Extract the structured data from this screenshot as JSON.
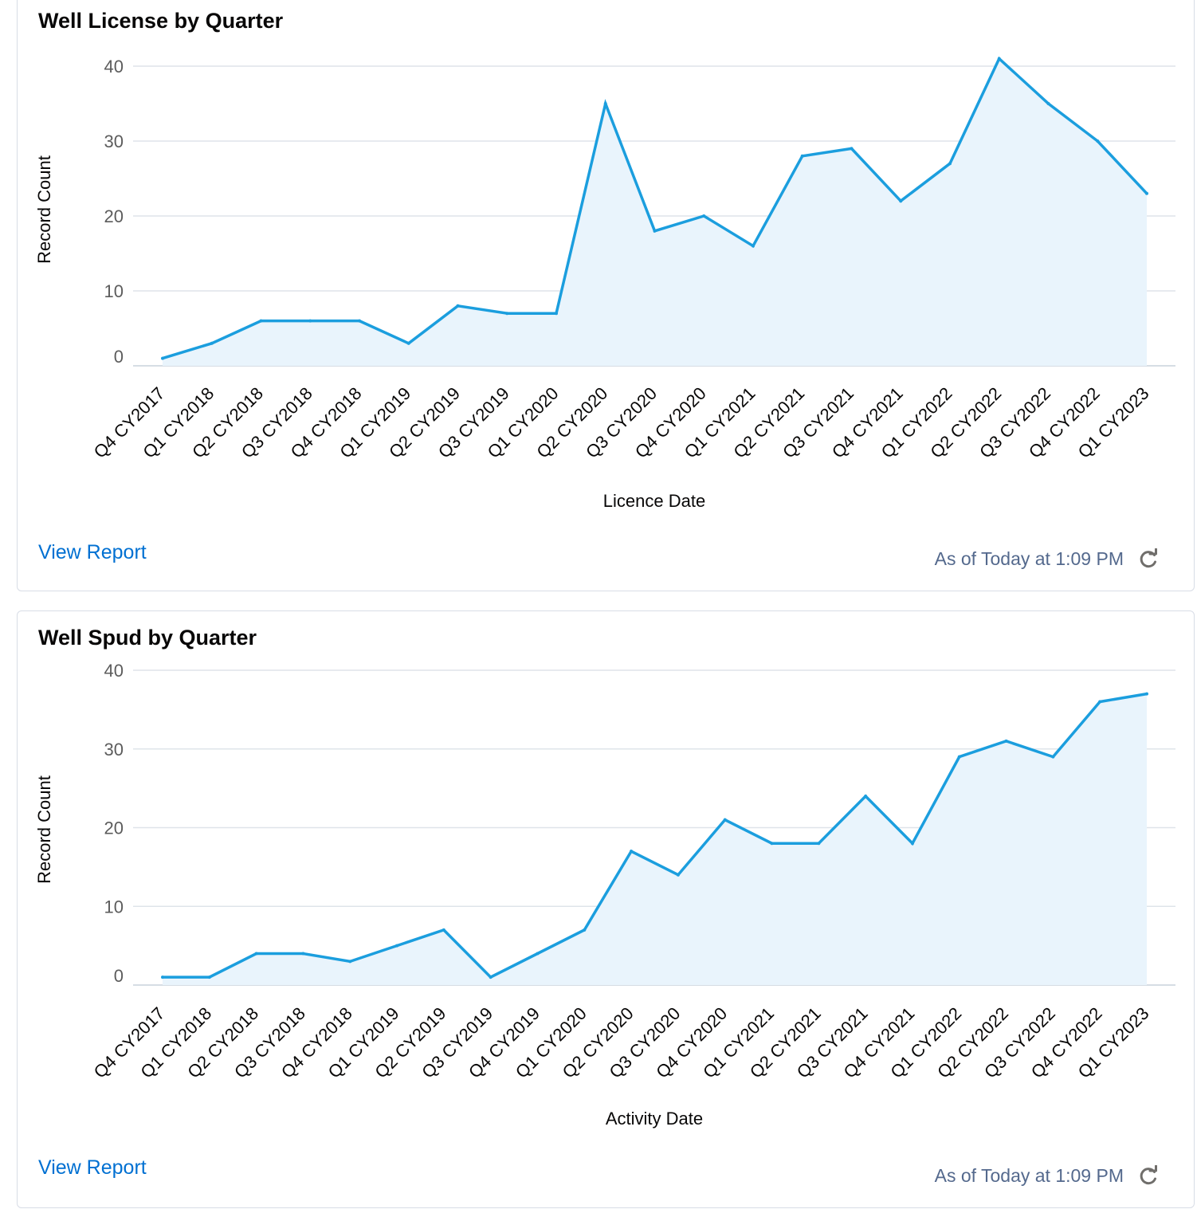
{
  "charts": [
    {
      "title": "Well License by Quarter",
      "view_report_label": "View Report",
      "as_of_text": "As of Today at 1:09 PM"
    },
    {
      "title": "Well Spud by Quarter",
      "view_report_label": "View Report",
      "as_of_text": "As of Today at 1:09 PM"
    }
  ],
  "colors": {
    "line": "#1b9ede",
    "area": "#e9f4fc",
    "grid": "#dfe4ea",
    "axis_text": "#5c5c5c",
    "label_text": "#080707"
  },
  "chart_data": [
    {
      "type": "area",
      "title": "Well License by Quarter",
      "xlabel": "Licence Date",
      "ylabel": "Record Count",
      "ylim": [
        0,
        40
      ],
      "yticks": [
        0,
        10,
        20,
        30,
        40
      ],
      "grid": true,
      "categories": [
        "Q4 CY2017",
        "Q1 CY2018",
        "Q2 CY2018",
        "Q3 CY2018",
        "Q4 CY2018",
        "Q1 CY2019",
        "Q2 CY2019",
        "Q3 CY2019",
        "Q1 CY2020",
        "Q2 CY2020",
        "Q3 CY2020",
        "Q4 CY2020",
        "Q1 CY2021",
        "Q2 CY2021",
        "Q3 CY2021",
        "Q4 CY2021",
        "Q1 CY2022",
        "Q2 CY2022",
        "Q3 CY2022",
        "Q4 CY2022",
        "Q1 CY2023"
      ],
      "values": [
        1,
        3,
        6,
        6,
        6,
        3,
        8,
        7,
        7,
        35,
        18,
        20,
        16,
        28,
        29,
        22,
        27,
        41,
        35,
        30,
        23
      ]
    },
    {
      "type": "area",
      "title": "Well Spud by Quarter",
      "xlabel": "Activity Date",
      "ylabel": "Record Count",
      "ylim": [
        0,
        40
      ],
      "yticks": [
        0,
        10,
        20,
        30,
        40
      ],
      "grid": true,
      "categories": [
        "Q4 CY2017",
        "Q1 CY2018",
        "Q2 CY2018",
        "Q3 CY2018",
        "Q4 CY2018",
        "Q1 CY2019",
        "Q2 CY2019",
        "Q3 CY2019",
        "Q4 CY2019",
        "Q1 CY2020",
        "Q2 CY2020",
        "Q3 CY2020",
        "Q4 CY2020",
        "Q1 CY2021",
        "Q2 CY2021",
        "Q3 CY2021",
        "Q4 CY2021",
        "Q1 CY2022",
        "Q2 CY2022",
        "Q3 CY2022",
        "Q4 CY2022",
        "Q1 CY2023"
      ],
      "values": [
        1,
        1,
        4,
        4,
        3,
        5,
        7,
        1,
        4,
        7,
        17,
        14,
        21,
        18,
        18,
        24,
        18,
        29,
        31,
        29,
        36,
        37
      ]
    }
  ]
}
